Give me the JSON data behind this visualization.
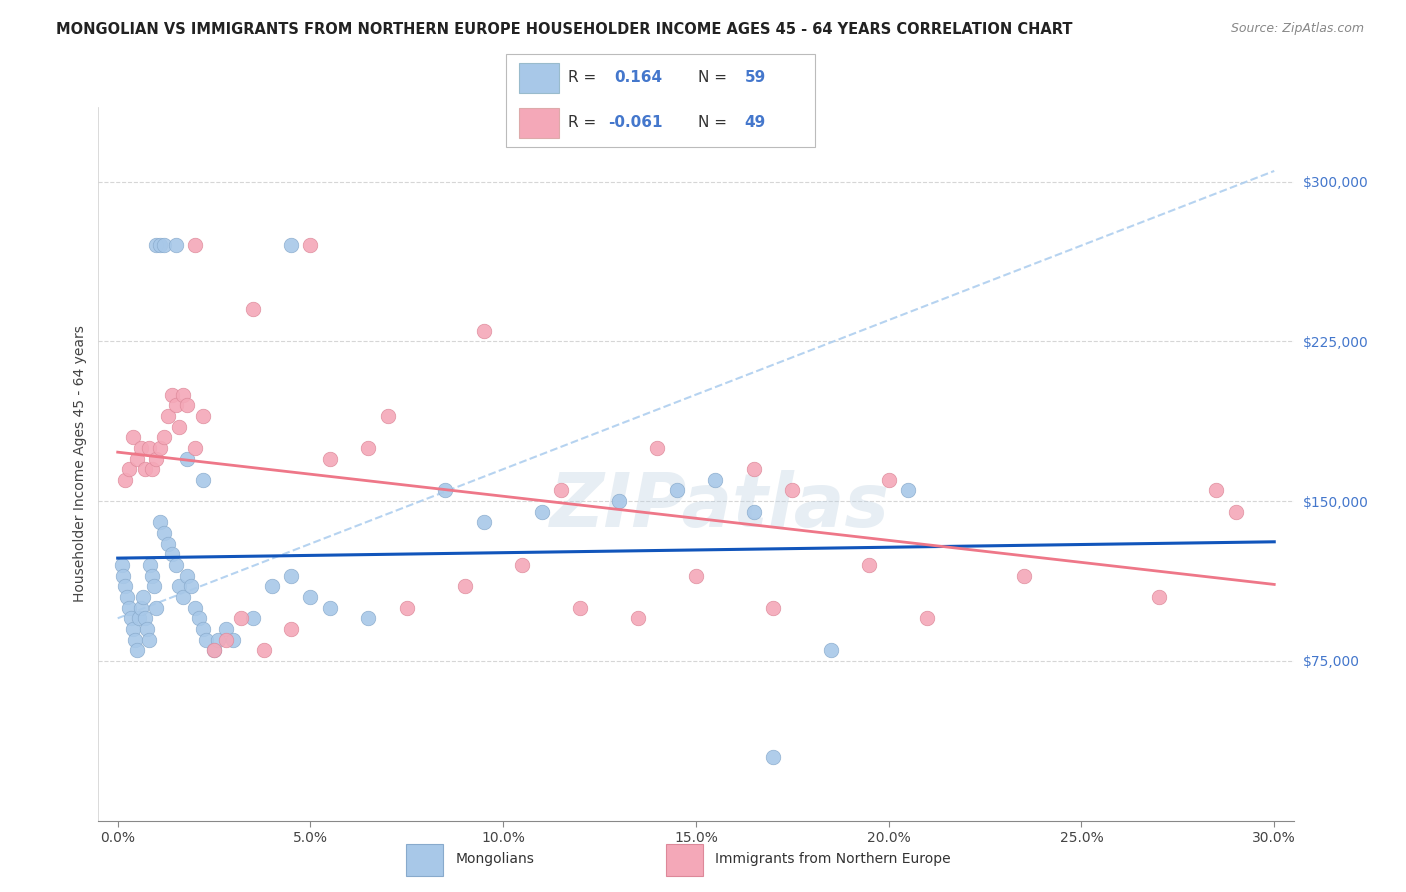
{
  "title": "MONGOLIAN VS IMMIGRANTS FROM NORTHERN EUROPE HOUSEHOLDER INCOME AGES 45 - 64 YEARS CORRELATION CHART",
  "source": "Source: ZipAtlas.com",
  "ylabel": "Householder Income Ages 45 - 64 years",
  "ytick_labels": [
    "$75,000",
    "$150,000",
    "$225,000",
    "$300,000"
  ],
  "ytick_vals": [
    75000,
    150000,
    225000,
    300000
  ],
  "R_mongolian": 0.164,
  "N_mongolian": 59,
  "R_northern_europe": -0.061,
  "N_northern_europe": 49,
  "mongolian_color": "#a8c8e8",
  "northern_europe_color": "#f4a8b8",
  "mongolian_line_color": "#1155bb",
  "northern_europe_line_color": "#ee7788",
  "dashed_line_color": "#aaccee",
  "watermark": "ZIPatlas",
  "mongolian_x": [
    0.1,
    0.15,
    0.2,
    0.25,
    0.3,
    0.35,
    0.4,
    0.45,
    0.5,
    0.55,
    0.6,
    0.65,
    0.7,
    0.75,
    0.8,
    0.85,
    0.9,
    0.95,
    1.0,
    1.1,
    1.2,
    1.3,
    1.4,
    1.5,
    1.6,
    1.7,
    1.8,
    1.9,
    2.0,
    2.1,
    2.2,
    2.3,
    2.5,
    2.6,
    2.8,
    3.0,
    3.5,
    4.0,
    4.5,
    5.0,
    5.5,
    6.5,
    8.5,
    9.5,
    11.0,
    13.0,
    14.5,
    15.5,
    16.5,
    17.0,
    18.5,
    20.5,
    4.5,
    1.0,
    1.1,
    1.2,
    1.5,
    1.8,
    2.2
  ],
  "mongolian_y": [
    120000,
    115000,
    110000,
    105000,
    100000,
    95000,
    90000,
    85000,
    80000,
    95000,
    100000,
    105000,
    95000,
    90000,
    85000,
    120000,
    115000,
    110000,
    100000,
    140000,
    135000,
    130000,
    125000,
    120000,
    110000,
    105000,
    115000,
    110000,
    100000,
    95000,
    90000,
    85000,
    80000,
    85000,
    90000,
    85000,
    95000,
    110000,
    115000,
    105000,
    100000,
    95000,
    155000,
    140000,
    145000,
    150000,
    155000,
    160000,
    145000,
    30000,
    80000,
    155000,
    270000,
    270000,
    270000,
    270000,
    270000,
    170000,
    160000
  ],
  "northern_europe_x": [
    0.2,
    0.3,
    0.4,
    0.5,
    0.6,
    0.7,
    0.8,
    0.9,
    1.0,
    1.1,
    1.2,
    1.3,
    1.4,
    1.5,
    1.6,
    1.7,
    1.8,
    2.0,
    2.2,
    2.5,
    2.8,
    3.2,
    3.8,
    4.5,
    5.5,
    6.5,
    7.5,
    9.0,
    10.5,
    12.0,
    13.5,
    15.0,
    17.0,
    19.5,
    21.0,
    23.5,
    27.0,
    14.0,
    2.0,
    3.5,
    5.0,
    7.0,
    9.5,
    11.5,
    16.5,
    17.5,
    20.0,
    28.5,
    29.0
  ],
  "northern_europe_y": [
    160000,
    165000,
    180000,
    170000,
    175000,
    165000,
    175000,
    165000,
    170000,
    175000,
    180000,
    190000,
    200000,
    195000,
    185000,
    200000,
    195000,
    175000,
    190000,
    80000,
    85000,
    95000,
    80000,
    90000,
    170000,
    175000,
    100000,
    110000,
    120000,
    100000,
    95000,
    115000,
    100000,
    120000,
    95000,
    115000,
    105000,
    175000,
    270000,
    240000,
    270000,
    190000,
    230000,
    155000,
    165000,
    155000,
    160000,
    155000,
    145000
  ]
}
